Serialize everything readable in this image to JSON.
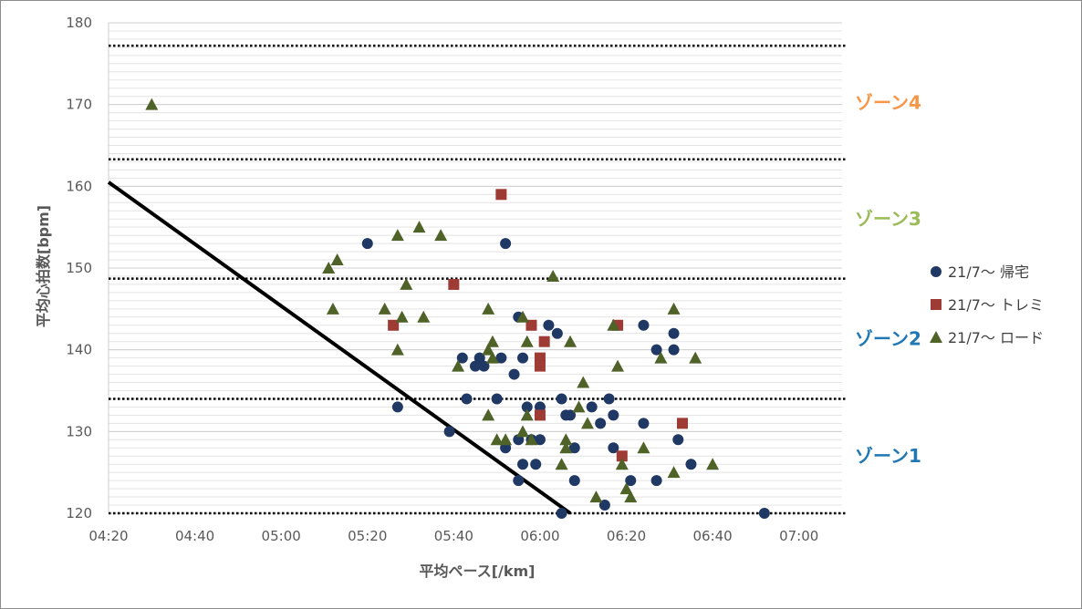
{
  "chart_data": {
    "type": "scatter",
    "xlabel": "平均ペース[/km]",
    "ylabel": "平均心拍数[bpm]",
    "xlim": [
      "04:20",
      "07:10"
    ],
    "ylim": [
      120,
      180
    ],
    "x_ticks": [
      "04:20",
      "04:40",
      "05:00",
      "05:20",
      "05:40",
      "06:00",
      "06:20",
      "06:40",
      "07:00"
    ],
    "y_ticks": [
      "120",
      "130",
      "140",
      "150",
      "160",
      "170",
      "180"
    ],
    "grid": "vertical major every 00:10, horizontal minor every 1 bpm",
    "legend_position": "right",
    "zones": [
      {
        "name": "ゾーン1",
        "color": "#1f77b4"
      },
      {
        "name": "ゾーン2",
        "color": "#1f77b4"
      },
      {
        "name": "ゾーン3",
        "color": "#9bbb59"
      },
      {
        "name": "ゾーン4",
        "color": "#f79646"
      }
    ],
    "zone_boundaries": [
      120,
      134,
      148.7,
      163.3,
      177.2
    ],
    "threshold_line": {
      "from": [
        "04:20",
        160.5
      ],
      "to": [
        "06:07",
        120
      ]
    },
    "series": [
      {
        "name": "21/7〜 帰宅",
        "marker": "circle",
        "color": "#1f3864",
        "points": [
          [
            "05:20",
            153
          ],
          [
            "05:52",
            153
          ],
          [
            "05:27",
            133
          ],
          [
            "05:39",
            130
          ],
          [
            "05:42",
            139
          ],
          [
            "05:45",
            138
          ],
          [
            "05:46",
            139
          ],
          [
            "05:47",
            138
          ],
          [
            "05:43",
            134
          ],
          [
            "05:50",
            134
          ],
          [
            "05:51",
            139
          ],
          [
            "05:55",
            144
          ],
          [
            "05:56",
            139
          ],
          [
            "05:54",
            137
          ],
          [
            "05:57",
            133
          ],
          [
            "05:58",
            129
          ],
          [
            "05:55",
            129
          ],
          [
            "06:00",
            133
          ],
          [
            "05:52",
            128
          ],
          [
            "05:56",
            126
          ],
          [
            "05:55",
            124
          ],
          [
            "05:59",
            126
          ],
          [
            "06:00",
            129
          ],
          [
            "06:02",
            143
          ],
          [
            "06:04",
            142
          ],
          [
            "06:05",
            134
          ],
          [
            "06:06",
            132
          ],
          [
            "06:07",
            132
          ],
          [
            "06:08",
            128
          ],
          [
            "06:08",
            124
          ],
          [
            "06:05",
            120
          ],
          [
            "06:12",
            133
          ],
          [
            "06:14",
            131
          ],
          [
            "06:15",
            121
          ],
          [
            "06:16",
            134
          ],
          [
            "06:17",
            132
          ],
          [
            "06:17",
            128
          ],
          [
            "06:21",
            124
          ],
          [
            "06:24",
            143
          ],
          [
            "06:24",
            131
          ],
          [
            "06:27",
            140
          ],
          [
            "06:27",
            124
          ],
          [
            "06:31",
            142
          ],
          [
            "06:31",
            140
          ],
          [
            "06:32",
            129
          ],
          [
            "06:35",
            126
          ],
          [
            "06:52",
            120
          ]
        ]
      },
      {
        "name": "21/7〜 トレミ",
        "marker": "square",
        "color": "#9e3b34",
        "points": [
          [
            "05:26",
            143
          ],
          [
            "05:40",
            148
          ],
          [
            "05:51",
            159
          ],
          [
            "05:58",
            143
          ],
          [
            "06:00",
            139
          ],
          [
            "06:00",
            138
          ],
          [
            "06:01",
            141
          ],
          [
            "06:00",
            132
          ],
          [
            "06:18",
            143
          ],
          [
            "06:19",
            127
          ],
          [
            "06:33",
            131
          ]
        ]
      },
      {
        "name": "21/7〜 ロード",
        "marker": "triangle",
        "color": "#4f6228",
        "points": [
          [
            "04:30",
            170
          ],
          [
            "05:11",
            150
          ],
          [
            "05:13",
            151
          ],
          [
            "05:12",
            145
          ],
          [
            "05:24",
            145
          ],
          [
            "05:27",
            154
          ],
          [
            "05:27",
            140
          ],
          [
            "05:28",
            144
          ],
          [
            "05:29",
            148
          ],
          [
            "05:32",
            155
          ],
          [
            "05:33",
            144
          ],
          [
            "05:37",
            154
          ],
          [
            "05:41",
            138
          ],
          [
            "05:48",
            140
          ],
          [
            "05:49",
            141
          ],
          [
            "05:49",
            139
          ],
          [
            "05:48",
            145
          ],
          [
            "05:48",
            132
          ],
          [
            "05:50",
            129
          ],
          [
            "05:52",
            129
          ],
          [
            "05:56",
            144
          ],
          [
            "05:57",
            141
          ],
          [
            "05:56",
            130
          ],
          [
            "05:57",
            132
          ],
          [
            "05:58",
            129
          ],
          [
            "06:03",
            149
          ],
          [
            "06:05",
            126
          ],
          [
            "06:06",
            129
          ],
          [
            "06:06",
            128
          ],
          [
            "06:07",
            141
          ],
          [
            "06:09",
            133
          ],
          [
            "06:10",
            136
          ],
          [
            "06:11",
            131
          ],
          [
            "06:13",
            122
          ],
          [
            "06:17",
            143
          ],
          [
            "06:18",
            138
          ],
          [
            "06:19",
            126
          ],
          [
            "06:20",
            123
          ],
          [
            "06:21",
            122
          ],
          [
            "06:24",
            128
          ],
          [
            "06:28",
            139
          ],
          [
            "06:31",
            145
          ],
          [
            "06:31",
            125
          ],
          [
            "06:36",
            139
          ],
          [
            "06:40",
            126
          ]
        ]
      }
    ]
  }
}
